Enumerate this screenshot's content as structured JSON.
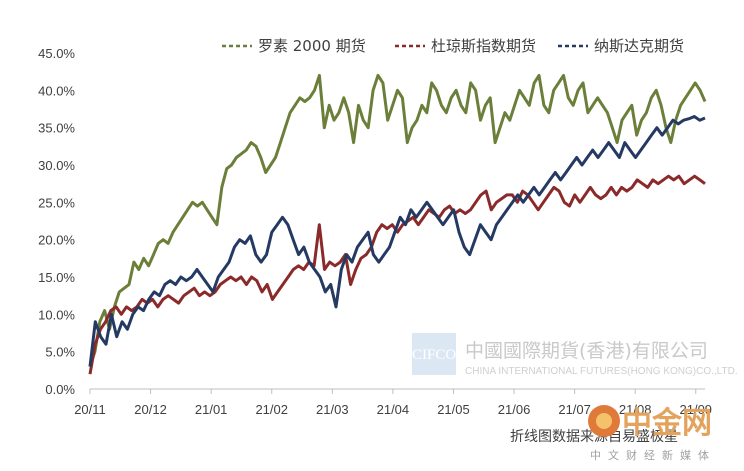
{
  "chart_data": {
    "type": "line",
    "source_note": "折线图数据来源自易盛极星",
    "x_tick_labels": [
      "20/11",
      "20/12",
      "21/01",
      "21/02",
      "21/03",
      "21/04",
      "21/05",
      "21/06",
      "21/07",
      "21/08",
      "21/09"
    ],
    "y_tick_labels": [
      "0.0%",
      "5.0%",
      "10.0%",
      "15.0%",
      "20.0%",
      "25.0%",
      "30.0%",
      "35.0%",
      "40.0%",
      "45.0%"
    ],
    "ylim": [
      0,
      45
    ],
    "y_unit": "%",
    "grid": false,
    "legend_position": "top-right",
    "series": [
      {
        "name": "罗素 2000 期货",
        "color": "#6b7f3a",
        "dash": "dashed-legend",
        "values": [
          3,
          5,
          9,
          10.5,
          8,
          11,
          13,
          13.5,
          14,
          17,
          16,
          17.5,
          16.5,
          18,
          19.5,
          20,
          19.5,
          21,
          22,
          23,
          24,
          25,
          24.5,
          25,
          24,
          23,
          22,
          27,
          29.5,
          30,
          31,
          31.5,
          32,
          33,
          32.5,
          31,
          29,
          30,
          31,
          33,
          35,
          37,
          38,
          39,
          38.5,
          39,
          40,
          42,
          35,
          38,
          36,
          37,
          39,
          37,
          33,
          38,
          36,
          35,
          40,
          42,
          41,
          36,
          38,
          40,
          39,
          33,
          35,
          36,
          38,
          37,
          41,
          40,
          38,
          37,
          39,
          40,
          38,
          37,
          41,
          40,
          36,
          38,
          39,
          33,
          35,
          37,
          36,
          38,
          40,
          39,
          38,
          41,
          42,
          38,
          37,
          40,
          41,
          42,
          39,
          38,
          40,
          41,
          37,
          38,
          39,
          38,
          37,
          35,
          33,
          36,
          37,
          38,
          34,
          36,
          37,
          39,
          40,
          38,
          35,
          33,
          36,
          38,
          39,
          40,
          41,
          40,
          38.5
        ]
      },
      {
        "name": "杜琼斯指数期货",
        "color": "#8b2a2a",
        "dash": "dashed-legend",
        "values": [
          2,
          6,
          8,
          9,
          10.5,
          11,
          10,
          11,
          10.5,
          11,
          12,
          11.5,
          12,
          11,
          12,
          12.5,
          12,
          11.5,
          12.5,
          13,
          13.5,
          12.5,
          13,
          12.5,
          13,
          14,
          14.5,
          15,
          14.5,
          15,
          14,
          15,
          14.5,
          13,
          14,
          12,
          13,
          14,
          15,
          16,
          16.5,
          16,
          17,
          16.5,
          22,
          16,
          17,
          16.5,
          17,
          18,
          14,
          16,
          17.5,
          18,
          19,
          21,
          22,
          21.5,
          22,
          21,
          22,
          22.5,
          23,
          22,
          23,
          24,
          23.5,
          23,
          24,
          24.5,
          23.5,
          24,
          23.5,
          24,
          25,
          26,
          26.5,
          24,
          25,
          25.5,
          26,
          26,
          25,
          26.5,
          26,
          25,
          24,
          25,
          26,
          27,
          26.5,
          25,
          24.5,
          26,
          25,
          26,
          27,
          26,
          25.5,
          26,
          27,
          26,
          27,
          26.5,
          27,
          28,
          27.5,
          27,
          28,
          27.5,
          28,
          28.5,
          28,
          28.5,
          27.5,
          28,
          28.5,
          28,
          27.5
        ]
      },
      {
        "name": "纳斯达克期货",
        "color": "#253a63",
        "dash": "dashed-legend",
        "values": [
          3,
          9,
          7,
          6,
          10,
          7,
          9,
          8,
          10,
          11,
          10.5,
          12,
          13,
          12.5,
          14,
          14.5,
          14,
          15,
          14.5,
          15,
          16,
          15,
          14,
          13,
          15,
          16,
          17,
          19,
          20,
          19.5,
          20.5,
          18,
          17,
          18,
          21,
          22,
          23,
          22,
          20,
          18,
          19,
          17,
          16,
          15,
          13,
          14,
          11,
          16,
          18,
          17,
          19,
          20,
          21,
          18,
          17,
          18,
          19,
          21,
          23,
          22,
          24,
          23,
          24,
          25,
          24,
          23,
          22,
          23,
          24,
          21,
          19,
          18,
          20,
          22,
          21,
          20,
          22,
          23,
          24,
          25,
          26,
          25,
          26,
          27,
          26,
          27,
          28,
          29,
          28,
          29,
          30,
          31,
          30,
          31,
          32,
          31,
          32,
          33,
          32,
          31,
          33,
          32,
          31,
          32,
          33,
          34,
          35,
          34,
          35,
          36,
          35.5,
          36,
          36.2,
          36.5,
          36,
          36.3
        ]
      }
    ]
  },
  "watermark": {
    "logo_text": "CIFCO",
    "company_cn": "中國國際期貨(香港)有限公司",
    "company_en": "CHINA INTERNATIONAL FUTURES(HONG KONG)CO.,LTD."
  },
  "brand": {
    "name": "中金网",
    "tagline": "中文财经新媒体"
  }
}
